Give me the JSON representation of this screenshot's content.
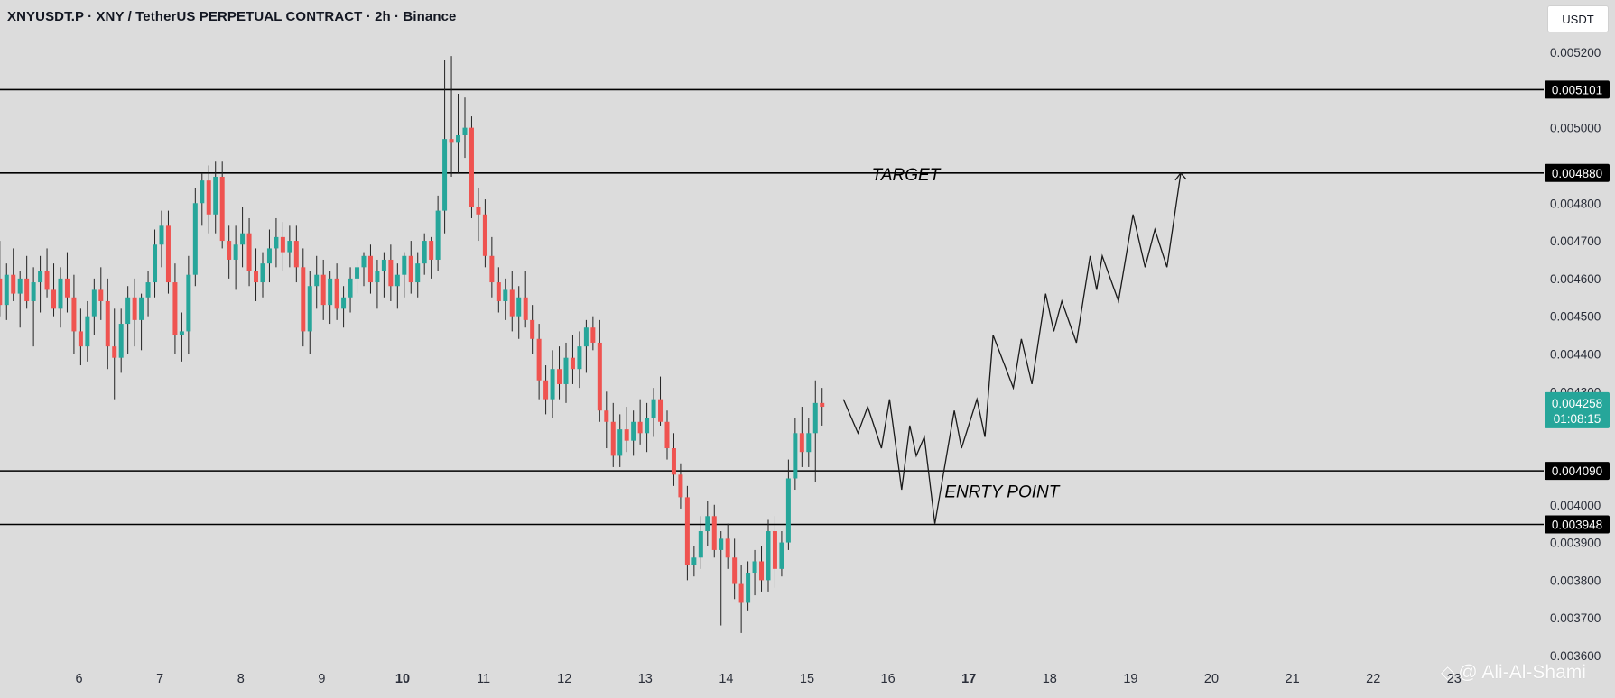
{
  "header": {
    "title": "XNYUSDT.P · XNY / TetherUS PERPETUAL CONTRACT · 2h · Binance",
    "currency_button": "USDT"
  },
  "watermark": {
    "text": "@ Ali-Al-Shami",
    "icon": "binance-square-icon"
  },
  "colors": {
    "bull": "#26a69a",
    "bear": "#ef5350",
    "background": "#dcdcdc",
    "line": "#000000",
    "price_tag": "#26a69a"
  },
  "chart_data": {
    "type": "candlestick",
    "title": "XNYUSDT.P · XNY / TetherUS PERPETUAL CONTRACT · 2h · Binance",
    "y_axis": {
      "side": "right",
      "range": [
        0.00358,
        0.00532
      ],
      "ticks": [
        "0.005200",
        "0.005000",
        "0.004800",
        "0.004700",
        "0.004600",
        "0.004500",
        "0.004400",
        "0.004300",
        "0.004000",
        "0.003900",
        "0.003800",
        "0.003700",
        "0.003600"
      ]
    },
    "x_axis": {
      "ticks": [
        {
          "label": "6",
          "day": 6,
          "bold": false
        },
        {
          "label": "7",
          "day": 7,
          "bold": false
        },
        {
          "label": "8",
          "day": 8,
          "bold": false
        },
        {
          "label": "9",
          "day": 9,
          "bold": false
        },
        {
          "label": "10",
          "day": 10,
          "bold": true
        },
        {
          "label": "11",
          "day": 11,
          "bold": false
        },
        {
          "label": "12",
          "day": 12,
          "bold": false
        },
        {
          "label": "13",
          "day": 13,
          "bold": false
        },
        {
          "label": "14",
          "day": 14,
          "bold": false
        },
        {
          "label": "15",
          "day": 15,
          "bold": false
        },
        {
          "label": "16",
          "day": 16,
          "bold": false
        },
        {
          "label": "17",
          "day": 17,
          "bold": true
        },
        {
          "label": "18",
          "day": 18,
          "bold": false
        },
        {
          "label": "19",
          "day": 19,
          "bold": false
        },
        {
          "label": "20",
          "day": 20,
          "bold": false
        },
        {
          "label": "21",
          "day": 21,
          "bold": false
        },
        {
          "label": "22",
          "day": 22,
          "bold": false
        },
        {
          "label": "23",
          "day": 23,
          "bold": false
        }
      ]
    },
    "horizontal_levels": [
      {
        "price": 0.005101,
        "label": "0.005101"
      },
      {
        "price": 0.00488,
        "label": "0.004880"
      },
      {
        "price": 0.00409,
        "label": "0.004090"
      },
      {
        "price": 0.003948,
        "label": "0.003948"
      }
    ],
    "current_price": {
      "price": 0.004258,
      "label": "0.004258",
      "countdown": "01:08:15"
    },
    "annotations": [
      {
        "text": "TARGET",
        "day": 15.8,
        "price": 0.00486
      },
      {
        "text": "ENRTY POINT",
        "day": 16.7,
        "price": 0.00402
      }
    ],
    "projection_path": [
      [
        15.45,
        0.00428
      ],
      [
        15.63,
        0.00419
      ],
      [
        15.75,
        0.00426
      ],
      [
        15.92,
        0.00415
      ],
      [
        16.02,
        0.00428
      ],
      [
        16.17,
        0.00404
      ],
      [
        16.27,
        0.00421
      ],
      [
        16.35,
        0.00413
      ],
      [
        16.45,
        0.00418
      ],
      [
        16.58,
        0.00395
      ],
      [
        16.82,
        0.00425
      ],
      [
        16.91,
        0.00415
      ],
      [
        17.1,
        0.00428
      ],
      [
        17.2,
        0.00418
      ],
      [
        17.3,
        0.00445
      ],
      [
        17.55,
        0.00431
      ],
      [
        17.65,
        0.00444
      ],
      [
        17.78,
        0.00432
      ],
      [
        17.95,
        0.00456
      ],
      [
        18.05,
        0.00446
      ],
      [
        18.15,
        0.00454
      ],
      [
        18.33,
        0.00443
      ],
      [
        18.5,
        0.00466
      ],
      [
        18.58,
        0.00457
      ],
      [
        18.65,
        0.00466
      ],
      [
        18.85,
        0.00454
      ],
      [
        19.03,
        0.00477
      ],
      [
        19.18,
        0.00463
      ],
      [
        19.3,
        0.00473
      ],
      [
        19.45,
        0.00463
      ],
      [
        19.62,
        0.00488
      ]
    ],
    "candles": [
      {
        "o": 0.0046,
        "h": 0.0047,
        "l": 0.0045,
        "c": 0.00453
      },
      {
        "o": 0.00453,
        "h": 0.00464,
        "l": 0.00449,
        "c": 0.00461
      },
      {
        "o": 0.00461,
        "h": 0.00468,
        "l": 0.00454,
        "c": 0.00456
      },
      {
        "o": 0.00456,
        "h": 0.00462,
        "l": 0.00447,
        "c": 0.0046
      },
      {
        "o": 0.0046,
        "h": 0.00466,
        "l": 0.00452,
        "c": 0.00454
      },
      {
        "o": 0.00454,
        "h": 0.00463,
        "l": 0.00442,
        "c": 0.00459
      },
      {
        "o": 0.00459,
        "h": 0.00466,
        "l": 0.00451,
        "c": 0.00462
      },
      {
        "o": 0.00462,
        "h": 0.00468,
        "l": 0.00455,
        "c": 0.00457
      },
      {
        "o": 0.00457,
        "h": 0.00464,
        "l": 0.0045,
        "c": 0.00452
      },
      {
        "o": 0.00452,
        "h": 0.00463,
        "l": 0.00447,
        "c": 0.0046
      },
      {
        "o": 0.0046,
        "h": 0.00467,
        "l": 0.00451,
        "c": 0.00455
      },
      {
        "o": 0.00455,
        "h": 0.00461,
        "l": 0.0044,
        "c": 0.00446
      },
      {
        "o": 0.00446,
        "h": 0.00452,
        "l": 0.00437,
        "c": 0.00442
      },
      {
        "o": 0.00442,
        "h": 0.00454,
        "l": 0.00438,
        "c": 0.0045
      },
      {
        "o": 0.0045,
        "h": 0.0046,
        "l": 0.00445,
        "c": 0.00457
      },
      {
        "o": 0.00457,
        "h": 0.00463,
        "l": 0.00449,
        "c": 0.00454
      },
      {
        "o": 0.00454,
        "h": 0.0046,
        "l": 0.00436,
        "c": 0.00442
      },
      {
        "o": 0.00442,
        "h": 0.00452,
        "l": 0.00428,
        "c": 0.00439
      },
      {
        "o": 0.00439,
        "h": 0.00452,
        "l": 0.00435,
        "c": 0.00448
      },
      {
        "o": 0.00448,
        "h": 0.00458,
        "l": 0.0044,
        "c": 0.00455
      },
      {
        "o": 0.00455,
        "h": 0.0046,
        "l": 0.00442,
        "c": 0.00449
      },
      {
        "o": 0.00449,
        "h": 0.00456,
        "l": 0.00441,
        "c": 0.00455
      },
      {
        "o": 0.00455,
        "h": 0.00462,
        "l": 0.0045,
        "c": 0.00459
      },
      {
        "o": 0.00459,
        "h": 0.00473,
        "l": 0.00455,
        "c": 0.00469
      },
      {
        "o": 0.00469,
        "h": 0.00478,
        "l": 0.00463,
        "c": 0.00474
      },
      {
        "o": 0.00474,
        "h": 0.00478,
        "l": 0.00456,
        "c": 0.00459
      },
      {
        "o": 0.00459,
        "h": 0.00464,
        "l": 0.0044,
        "c": 0.00445
      },
      {
        "o": 0.00445,
        "h": 0.00451,
        "l": 0.00438,
        "c": 0.00446
      },
      {
        "o": 0.00446,
        "h": 0.00466,
        "l": 0.0044,
        "c": 0.00461
      },
      {
        "o": 0.00461,
        "h": 0.00484,
        "l": 0.00458,
        "c": 0.0048
      },
      {
        "o": 0.0048,
        "h": 0.00488,
        "l": 0.00474,
        "c": 0.00486
      },
      {
        "o": 0.00486,
        "h": 0.0049,
        "l": 0.00472,
        "c": 0.00477
      },
      {
        "o": 0.00477,
        "h": 0.00491,
        "l": 0.00472,
        "c": 0.00487
      },
      {
        "o": 0.00487,
        "h": 0.00491,
        "l": 0.00468,
        "c": 0.0047
      },
      {
        "o": 0.0047,
        "h": 0.00474,
        "l": 0.0046,
        "c": 0.00465
      },
      {
        "o": 0.00465,
        "h": 0.00474,
        "l": 0.00457,
        "c": 0.00469
      },
      {
        "o": 0.00469,
        "h": 0.00479,
        "l": 0.00463,
        "c": 0.00472
      },
      {
        "o": 0.00472,
        "h": 0.00476,
        "l": 0.00458,
        "c": 0.00462
      },
      {
        "o": 0.00462,
        "h": 0.00468,
        "l": 0.00454,
        "c": 0.00459
      },
      {
        "o": 0.00459,
        "h": 0.00467,
        "l": 0.00455,
        "c": 0.00464
      },
      {
        "o": 0.00464,
        "h": 0.00473,
        "l": 0.00459,
        "c": 0.00468
      },
      {
        "o": 0.00468,
        "h": 0.00476,
        "l": 0.00463,
        "c": 0.00471
      },
      {
        "o": 0.00471,
        "h": 0.00475,
        "l": 0.00462,
        "c": 0.00467
      },
      {
        "o": 0.00467,
        "h": 0.00474,
        "l": 0.00463,
        "c": 0.0047
      },
      {
        "o": 0.0047,
        "h": 0.00474,
        "l": 0.00459,
        "c": 0.00463
      },
      {
        "o": 0.00463,
        "h": 0.00468,
        "l": 0.00442,
        "c": 0.00446
      },
      {
        "o": 0.00446,
        "h": 0.00462,
        "l": 0.0044,
        "c": 0.00458
      },
      {
        "o": 0.00458,
        "h": 0.00466,
        "l": 0.00452,
        "c": 0.00461
      },
      {
        "o": 0.00461,
        "h": 0.00465,
        "l": 0.00449,
        "c": 0.00453
      },
      {
        "o": 0.00453,
        "h": 0.00462,
        "l": 0.00448,
        "c": 0.0046
      },
      {
        "o": 0.0046,
        "h": 0.00464,
        "l": 0.00449,
        "c": 0.00452
      },
      {
        "o": 0.00452,
        "h": 0.00458,
        "l": 0.00447,
        "c": 0.00455
      },
      {
        "o": 0.00455,
        "h": 0.00463,
        "l": 0.00451,
        "c": 0.0046
      },
      {
        "o": 0.0046,
        "h": 0.00465,
        "l": 0.00456,
        "c": 0.00463
      },
      {
        "o": 0.00463,
        "h": 0.00467,
        "l": 0.00458,
        "c": 0.00466
      },
      {
        "o": 0.00466,
        "h": 0.00469,
        "l": 0.00456,
        "c": 0.00459
      },
      {
        "o": 0.00459,
        "h": 0.00465,
        "l": 0.00452,
        "c": 0.00462
      },
      {
        "o": 0.00462,
        "h": 0.00467,
        "l": 0.00455,
        "c": 0.00465
      },
      {
        "o": 0.00465,
        "h": 0.00469,
        "l": 0.00454,
        "c": 0.00458
      },
      {
        "o": 0.00458,
        "h": 0.00464,
        "l": 0.00452,
        "c": 0.00461
      },
      {
        "o": 0.00461,
        "h": 0.00467,
        "l": 0.00455,
        "c": 0.00466
      },
      {
        "o": 0.00466,
        "h": 0.0047,
        "l": 0.00456,
        "c": 0.00459
      },
      {
        "o": 0.00459,
        "h": 0.00467,
        "l": 0.00455,
        "c": 0.00464
      },
      {
        "o": 0.00464,
        "h": 0.00472,
        "l": 0.00461,
        "c": 0.0047
      },
      {
        "o": 0.0047,
        "h": 0.00471,
        "l": 0.0046,
        "c": 0.00465
      },
      {
        "o": 0.00465,
        "h": 0.00482,
        "l": 0.00462,
        "c": 0.00478
      },
      {
        "o": 0.00478,
        "h": 0.00518,
        "l": 0.00472,
        "c": 0.00497
      },
      {
        "o": 0.00497,
        "h": 0.00519,
        "l": 0.00487,
        "c": 0.00496
      },
      {
        "o": 0.00496,
        "h": 0.00509,
        "l": 0.00488,
        "c": 0.00498
      },
      {
        "o": 0.00498,
        "h": 0.00508,
        "l": 0.00492,
        "c": 0.005
      },
      {
        "o": 0.005,
        "h": 0.00503,
        "l": 0.00476,
        "c": 0.00479
      },
      {
        "o": 0.00479,
        "h": 0.00484,
        "l": 0.0047,
        "c": 0.00477
      },
      {
        "o": 0.00477,
        "h": 0.00481,
        "l": 0.00463,
        "c": 0.00466
      },
      {
        "o": 0.00466,
        "h": 0.00471,
        "l": 0.00455,
        "c": 0.00459
      },
      {
        "o": 0.00459,
        "h": 0.00463,
        "l": 0.00451,
        "c": 0.00454
      },
      {
        "o": 0.00454,
        "h": 0.0046,
        "l": 0.00449,
        "c": 0.00457
      },
      {
        "o": 0.00457,
        "h": 0.00462,
        "l": 0.00446,
        "c": 0.0045
      },
      {
        "o": 0.0045,
        "h": 0.00458,
        "l": 0.00444,
        "c": 0.00455
      },
      {
        "o": 0.00455,
        "h": 0.00462,
        "l": 0.00447,
        "c": 0.00449
      },
      {
        "o": 0.00449,
        "h": 0.00453,
        "l": 0.0044,
        "c": 0.00444
      },
      {
        "o": 0.00444,
        "h": 0.00448,
        "l": 0.00428,
        "c": 0.00433
      },
      {
        "o": 0.00433,
        "h": 0.00437,
        "l": 0.00424,
        "c": 0.00428
      },
      {
        "o": 0.00428,
        "h": 0.00441,
        "l": 0.00423,
        "c": 0.00436
      },
      {
        "o": 0.00436,
        "h": 0.00442,
        "l": 0.00428,
        "c": 0.00432
      },
      {
        "o": 0.00432,
        "h": 0.00443,
        "l": 0.00427,
        "c": 0.00439
      },
      {
        "o": 0.00439,
        "h": 0.00445,
        "l": 0.00432,
        "c": 0.00436
      },
      {
        "o": 0.00436,
        "h": 0.00446,
        "l": 0.00431,
        "c": 0.00442
      },
      {
        "o": 0.00442,
        "h": 0.00449,
        "l": 0.00435,
        "c": 0.00447
      },
      {
        "o": 0.00447,
        "h": 0.0045,
        "l": 0.00441,
        "c": 0.00443
      },
      {
        "o": 0.00443,
        "h": 0.00449,
        "l": 0.00422,
        "c": 0.00425
      },
      {
        "o": 0.00425,
        "h": 0.0043,
        "l": 0.00415,
        "c": 0.00422
      },
      {
        "o": 0.00422,
        "h": 0.00427,
        "l": 0.0041,
        "c": 0.00413
      },
      {
        "o": 0.00413,
        "h": 0.00424,
        "l": 0.0041,
        "c": 0.0042
      },
      {
        "o": 0.0042,
        "h": 0.00426,
        "l": 0.00414,
        "c": 0.00417
      },
      {
        "o": 0.00417,
        "h": 0.00425,
        "l": 0.00413,
        "c": 0.00422
      },
      {
        "o": 0.00422,
        "h": 0.00428,
        "l": 0.00416,
        "c": 0.00419
      },
      {
        "o": 0.00419,
        "h": 0.00427,
        "l": 0.00414,
        "c": 0.00423
      },
      {
        "o": 0.00423,
        "h": 0.00431,
        "l": 0.00418,
        "c": 0.00428
      },
      {
        "o": 0.00428,
        "h": 0.00434,
        "l": 0.00421,
        "c": 0.00422
      },
      {
        "o": 0.00422,
        "h": 0.00425,
        "l": 0.00412,
        "c": 0.00415
      },
      {
        "o": 0.00415,
        "h": 0.00419,
        "l": 0.00405,
        "c": 0.00408
      },
      {
        "o": 0.00408,
        "h": 0.00411,
        "l": 0.00399,
        "c": 0.00402
      },
      {
        "o": 0.00402,
        "h": 0.00405,
        "l": 0.0038,
        "c": 0.00384
      },
      {
        "o": 0.00384,
        "h": 0.00389,
        "l": 0.00381,
        "c": 0.00386
      },
      {
        "o": 0.00386,
        "h": 0.00397,
        "l": 0.00383,
        "c": 0.00393
      },
      {
        "o": 0.00393,
        "h": 0.00401,
        "l": 0.00389,
        "c": 0.00397
      },
      {
        "o": 0.00397,
        "h": 0.004,
        "l": 0.00386,
        "c": 0.00388
      },
      {
        "o": 0.00388,
        "h": 0.00393,
        "l": 0.00368,
        "c": 0.00391
      },
      {
        "o": 0.00391,
        "h": 0.00395,
        "l": 0.00383,
        "c": 0.00386
      },
      {
        "o": 0.00386,
        "h": 0.00391,
        "l": 0.00375,
        "c": 0.00379
      },
      {
        "o": 0.00379,
        "h": 0.00384,
        "l": 0.00366,
        "c": 0.00374
      },
      {
        "o": 0.00374,
        "h": 0.00385,
        "l": 0.00372,
        "c": 0.00382
      },
      {
        "o": 0.00382,
        "h": 0.00388,
        "l": 0.00376,
        "c": 0.00385
      },
      {
        "o": 0.00385,
        "h": 0.00389,
        "l": 0.00377,
        "c": 0.0038
      },
      {
        "o": 0.0038,
        "h": 0.00396,
        "l": 0.00377,
        "c": 0.00393
      },
      {
        "o": 0.00393,
        "h": 0.00397,
        "l": 0.00378,
        "c": 0.00383
      },
      {
        "o": 0.00383,
        "h": 0.00393,
        "l": 0.00381,
        "c": 0.0039
      },
      {
        "o": 0.0039,
        "h": 0.00412,
        "l": 0.00388,
        "c": 0.00407
      },
      {
        "o": 0.00407,
        "h": 0.00423,
        "l": 0.00404,
        "c": 0.00419
      },
      {
        "o": 0.00419,
        "h": 0.00426,
        "l": 0.0041,
        "c": 0.00414
      },
      {
        "o": 0.00414,
        "h": 0.00423,
        "l": 0.0041,
        "c": 0.00419
      },
      {
        "o": 0.00419,
        "h": 0.00433,
        "l": 0.00406,
        "c": 0.00427
      },
      {
        "o": 0.00427,
        "h": 0.00431,
        "l": 0.00421,
        "c": 0.00426
      }
    ]
  }
}
